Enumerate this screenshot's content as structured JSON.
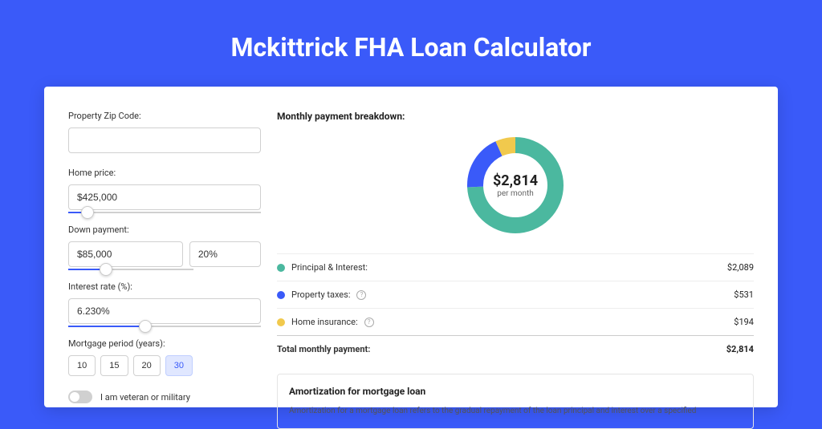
{
  "page": {
    "title": "Mckittrick FHA Loan Calculator",
    "background_color": "#3a5af9",
    "card_bg": "#ffffff"
  },
  "form": {
    "zip": {
      "label": "Property Zip Code:",
      "value": ""
    },
    "home_price": {
      "label": "Home price:",
      "value": "$425,000",
      "slider_pct": 10
    },
    "down_payment": {
      "label": "Down payment:",
      "amount": "$85,000",
      "percent": "20%",
      "slider_pct": 30
    },
    "interest_rate": {
      "label": "Interest rate (%):",
      "value": "6.230%",
      "slider_pct": 40
    },
    "period": {
      "label": "Mortgage period (years):",
      "options": [
        "10",
        "15",
        "20",
        "30"
      ],
      "active": "30"
    },
    "veteran": {
      "label": "I am veteran or military",
      "on": false
    }
  },
  "breakdown": {
    "title": "Monthly payment breakdown:",
    "center_value": "$2,814",
    "center_sub": "per month",
    "donut": {
      "type": "donut",
      "radius": 50,
      "stroke_width": 20,
      "series": [
        {
          "key": "principal_interest",
          "value": 2089,
          "color": "#4bb89f",
          "pct": 74.2
        },
        {
          "key": "property_taxes",
          "value": 531,
          "color": "#3a5af9",
          "pct": 18.9
        },
        {
          "key": "home_insurance",
          "value": 194,
          "color": "#f1c94d",
          "pct": 6.9
        }
      ]
    },
    "rows": [
      {
        "label": "Principal & Interest:",
        "value": "$2,089",
        "color": "#4bb89f",
        "info": false
      },
      {
        "label": "Property taxes:",
        "value": "$531",
        "color": "#3a5af9",
        "info": true
      },
      {
        "label": "Home insurance:",
        "value": "$194",
        "color": "#f1c94d",
        "info": true
      }
    ],
    "total": {
      "label": "Total monthly payment:",
      "value": "$2,814"
    }
  },
  "amortization": {
    "title": "Amortization for mortgage loan",
    "text": "Amortization for a mortgage loan refers to the gradual repayment of the loan principal and interest over a specified"
  }
}
